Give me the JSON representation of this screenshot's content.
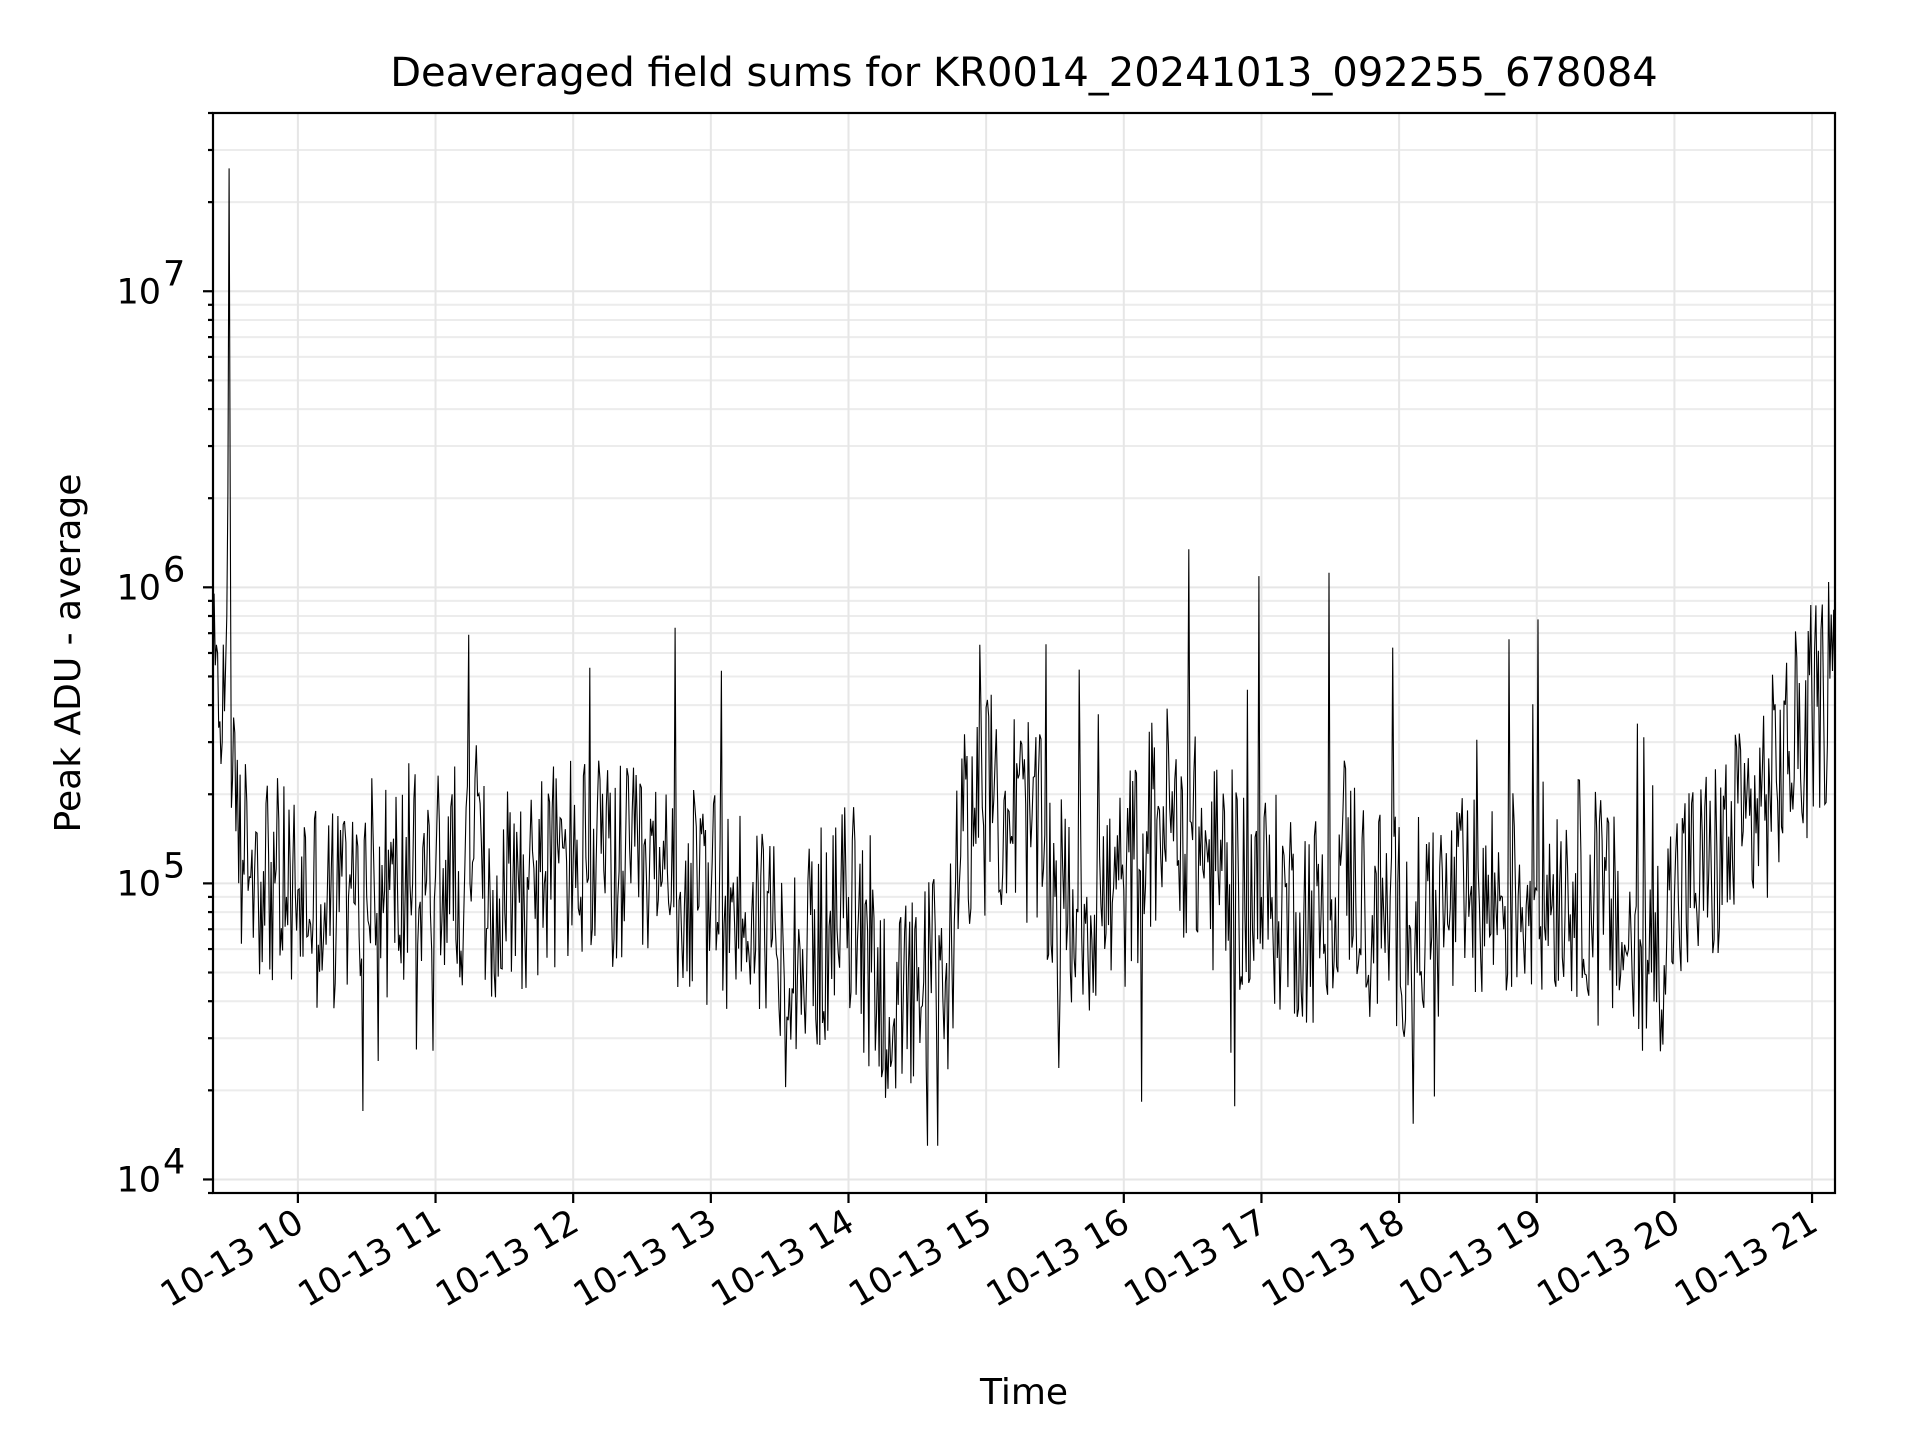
{
  "chart_data": {
    "type": "line",
    "title": "Deaveraged field sums for KR0014_20241013_092255_678084",
    "xlabel": "Time",
    "ylabel": "Peak ADU - average",
    "yscale": "log",
    "grid": true,
    "xlim": [
      "2024-10-13T09:23:00",
      "2024-10-13T21:10:00"
    ],
    "ylim": [
      9000,
      40000000
    ],
    "xticks": [
      "10-13 10",
      "10-13 11",
      "10-13 12",
      "10-13 13",
      "10-13 14",
      "10-13 15",
      "10-13 16",
      "10-13 17",
      "10-13 18",
      "10-13 19",
      "10-13 20",
      "10-13 21"
    ],
    "xtick_times": [
      "2024-10-13T10:00:00",
      "2024-10-13T11:00:00",
      "2024-10-13T12:00:00",
      "2024-10-13T13:00:00",
      "2024-10-13T14:00:00",
      "2024-10-13T15:00:00",
      "2024-10-13T16:00:00",
      "2024-10-13T17:00:00",
      "2024-10-13T18:00:00",
      "2024-10-13T19:00:00",
      "2024-10-13T20:00:00",
      "2024-10-13T21:00:00"
    ],
    "yticks": [
      {
        "value": 10000,
        "base": "10",
        "exp": "4"
      },
      {
        "value": 100000,
        "base": "10",
        "exp": "5"
      },
      {
        "value": 1000000,
        "base": "10",
        "exp": "6"
      },
      {
        "value": 10000000,
        "base": "10",
        "exp": "7"
      }
    ],
    "series": [
      {
        "color": "#000000",
        "x": [
          "2024-10-13T09:23:00",
          "2024-10-13T09:25:00",
          "2024-10-13T09:27:00",
          "2024-10-13T09:29:00",
          "2024-10-13T09:30:00",
          "2024-10-13T09:31:00",
          "2024-10-13T09:33:00",
          "2024-10-13T09:36:00",
          "2024-10-13T09:40:00",
          "2024-10-13T09:45:00",
          "2024-10-13T09:50:00",
          "2024-10-13T09:55:00",
          "2024-10-13T10:00:00",
          "2024-10-13T10:10:00",
          "2024-10-13T10:18:00",
          "2024-10-13T10:25:00",
          "2024-10-13T10:30:00",
          "2024-10-13T10:40:00",
          "2024-10-13T10:50:00",
          "2024-10-13T11:00:00",
          "2024-10-13T11:10:00",
          "2024-10-13T11:15:00",
          "2024-10-13T11:25:00",
          "2024-10-13T11:40:00",
          "2024-10-13T11:48:00",
          "2024-10-13T12:00:00",
          "2024-10-13T12:10:00",
          "2024-10-13T12:20:00",
          "2024-10-13T12:32:00",
          "2024-10-13T12:45:00",
          "2024-10-13T13:00:00",
          "2024-10-13T13:15:00",
          "2024-10-13T13:28:00",
          "2024-10-13T13:40:00",
          "2024-10-13T13:55:00",
          "2024-10-13T14:00:00",
          "2024-10-13T14:10:00",
          "2024-10-13T14:20:00",
          "2024-10-13T14:30:00",
          "2024-10-13T14:40:00",
          "2024-10-13T14:45:00",
          "2024-10-13T14:50:00",
          "2024-10-13T14:55:00",
          "2024-10-13T15:05:00",
          "2024-10-13T15:10:00",
          "2024-10-13T15:20:00",
          "2024-10-13T15:30:00",
          "2024-10-13T15:40:00",
          "2024-10-13T15:50:00",
          "2024-10-13T16:00:00",
          "2024-10-13T16:10:00",
          "2024-10-13T16:20:00",
          "2024-10-13T16:30:00",
          "2024-10-13T16:40:00",
          "2024-10-13T16:50:00",
          "2024-10-13T17:00:00",
          "2024-10-13T17:15:00",
          "2024-10-13T17:30:00",
          "2024-10-13T17:35:00",
          "2024-10-13T17:45:00",
          "2024-10-13T17:55:00",
          "2024-10-13T18:05:00",
          "2024-10-13T18:20:00",
          "2024-10-13T18:35:00",
          "2024-10-13T18:45:00",
          "2024-10-13T19:00:00",
          "2024-10-13T19:10:00",
          "2024-10-13T19:25:00",
          "2024-10-13T19:40:00",
          "2024-10-13T19:50:00",
          "2024-10-13T20:00:00",
          "2024-10-13T20:15:00",
          "2024-10-13T20:30:00",
          "2024-10-13T20:40:00",
          "2024-10-13T20:50:00",
          "2024-10-13T21:00:00",
          "2024-10-13T21:05:00",
          "2024-10-13T21:10:00"
        ],
        "y": [
          400000,
          600000,
          300000,
          800000,
          26000000,
          180000,
          150000,
          120000,
          130000,
          110000,
          100000,
          90000,
          95000,
          85000,
          80000,
          85000,
          90000,
          95000,
          100000,
          105000,
          110000,
          100000,
          95000,
          105000,
          110000,
          120000,
          115000,
          110000,
          100000,
          95000,
          85000,
          80000,
          75000,
          60000,
          70000,
          90000,
          50000,
          35000,
          40000,
          55000,
          60000,
          150000,
          180000,
          190000,
          175000,
          165000,
          90000,
          80000,
          85000,
          95000,
          150000,
          180000,
          140000,
          110000,
          100000,
          90000,
          80000,
          75000,
          130000,
          90000,
          75000,
          70000,
          80000,
          85000,
          90000,
          95000,
          100000,
          95000,
          60000,
          50000,
          90000,
          110000,
          150000,
          200000,
          280000,
          380000,
          420000,
          450000
        ]
      }
    ]
  }
}
